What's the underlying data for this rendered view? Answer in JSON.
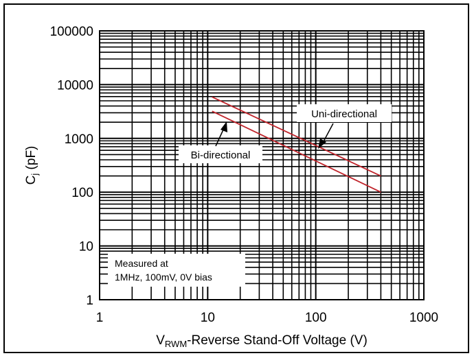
{
  "chart_data": {
    "type": "line",
    "xscale": "log",
    "yscale": "log",
    "xlim": [
      1,
      1000
    ],
    "ylim": [
      1,
      100000
    ],
    "x_ticks": [
      "1",
      "10",
      "100",
      "1000"
    ],
    "y_ticks": [
      "1",
      "10",
      "100",
      "1000",
      "10000",
      "100000"
    ],
    "xlabel_main": "V",
    "xlabel_sub": "RWM",
    "xlabel_rest": "-Reverse Stand-Off Voltage (V)",
    "ylabel_main": "C",
    "ylabel_sub": "j",
    "ylabel_rest": " (pF)",
    "grid": true,
    "line_color": "#c0242b",
    "series": [
      {
        "name": "Uni-directional",
        "x": [
          11,
          400
        ],
        "y": [
          5900,
          200
        ]
      },
      {
        "name": "Bi-directional",
        "x": [
          11,
          400
        ],
        "y": [
          3200,
          100
        ]
      }
    ],
    "annotations": {
      "uni": "Uni-directional",
      "bi": "Bi-directional",
      "note_line1": "Measured at",
      "note_line2": "1MHz, 100mV, 0V bias"
    }
  }
}
